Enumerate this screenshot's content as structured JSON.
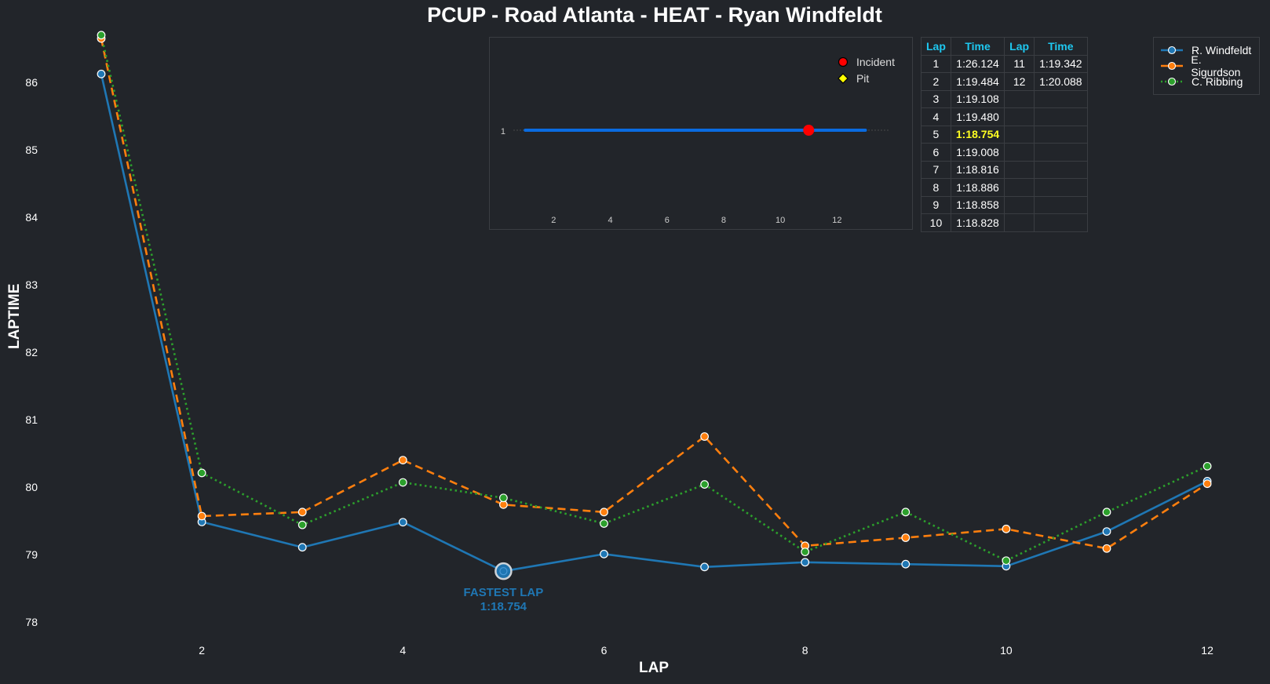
{
  "chart_data": {
    "type": "line",
    "title": "PCUP - Road Atlanta - HEAT - Ryan Windfeldt",
    "xlabel": "LAP",
    "ylabel": "LAPTIME",
    "x": [
      1,
      2,
      3,
      4,
      5,
      6,
      7,
      8,
      9,
      10,
      11,
      12
    ],
    "xticks": [
      2,
      4,
      6,
      8,
      10,
      12
    ],
    "yticks": [
      78,
      79,
      80,
      81,
      82,
      83,
      84,
      85,
      86
    ],
    "ylim": [
      77.2,
      86.75
    ],
    "xlim": [
      0.5,
      12.6
    ],
    "grid": false,
    "legend_position": "top-right",
    "series": [
      {
        "name": "R. Windfeldt",
        "color": "#1f77b4",
        "style": "solid",
        "values": [
          86.124,
          79.484,
          79.108,
          79.48,
          78.754,
          79.008,
          78.816,
          78.886,
          78.858,
          78.828,
          79.342,
          80.088
        ]
      },
      {
        "name": "E. Sigurdson",
        "color": "#ff7f0e",
        "style": "dashed",
        "values": [
          86.65,
          79.57,
          79.63,
          80.4,
          79.74,
          79.63,
          80.75,
          79.13,
          79.25,
          79.38,
          79.09,
          80.05
        ]
      },
      {
        "name": "C. Ribbing",
        "color": "#2ca02c",
        "style": "dotted",
        "values": [
          86.7,
          80.21,
          79.44,
          80.07,
          79.84,
          79.46,
          80.04,
          79.04,
          79.63,
          78.91,
          79.63,
          80.31
        ]
      }
    ],
    "annotation": {
      "label": "FASTEST LAP",
      "value_text": "1:18.754",
      "lap": 5,
      "value": 78.754
    },
    "inset": {
      "type": "line",
      "y_tick": "1",
      "xticks": [
        2,
        4,
        6,
        8,
        10,
        12
      ],
      "x_range": [
        1,
        13
      ],
      "line_color": "#0a6be0",
      "incident_laps": [
        11
      ],
      "legend": [
        {
          "label": "Incident",
          "marker": "circle",
          "color": "#ff0000"
        },
        {
          "label": "Pit",
          "marker": "diamond",
          "color": "#ffff00"
        }
      ]
    },
    "table": {
      "headers": [
        "Lap",
        "Time",
        "Lap",
        "Time"
      ],
      "rows": [
        [
          "1",
          "1:26.124",
          "11",
          "1:19.342"
        ],
        [
          "2",
          "1:19.484",
          "12",
          "1:20.088"
        ],
        [
          "3",
          "1:19.108",
          "",
          ""
        ],
        [
          "4",
          "1:19.480",
          "",
          ""
        ],
        [
          "5",
          "1:18.754",
          "",
          ""
        ],
        [
          "6",
          "1:19.008",
          "",
          ""
        ],
        [
          "7",
          "1:18.816",
          "",
          ""
        ],
        [
          "8",
          "1:18.886",
          "",
          ""
        ],
        [
          "9",
          "1:18.858",
          "",
          ""
        ],
        [
          "10",
          "1:18.828",
          "",
          ""
        ]
      ],
      "fastest_row": 4,
      "highlight_color": "#ffff22",
      "header_color": "#1ec8f0"
    }
  }
}
